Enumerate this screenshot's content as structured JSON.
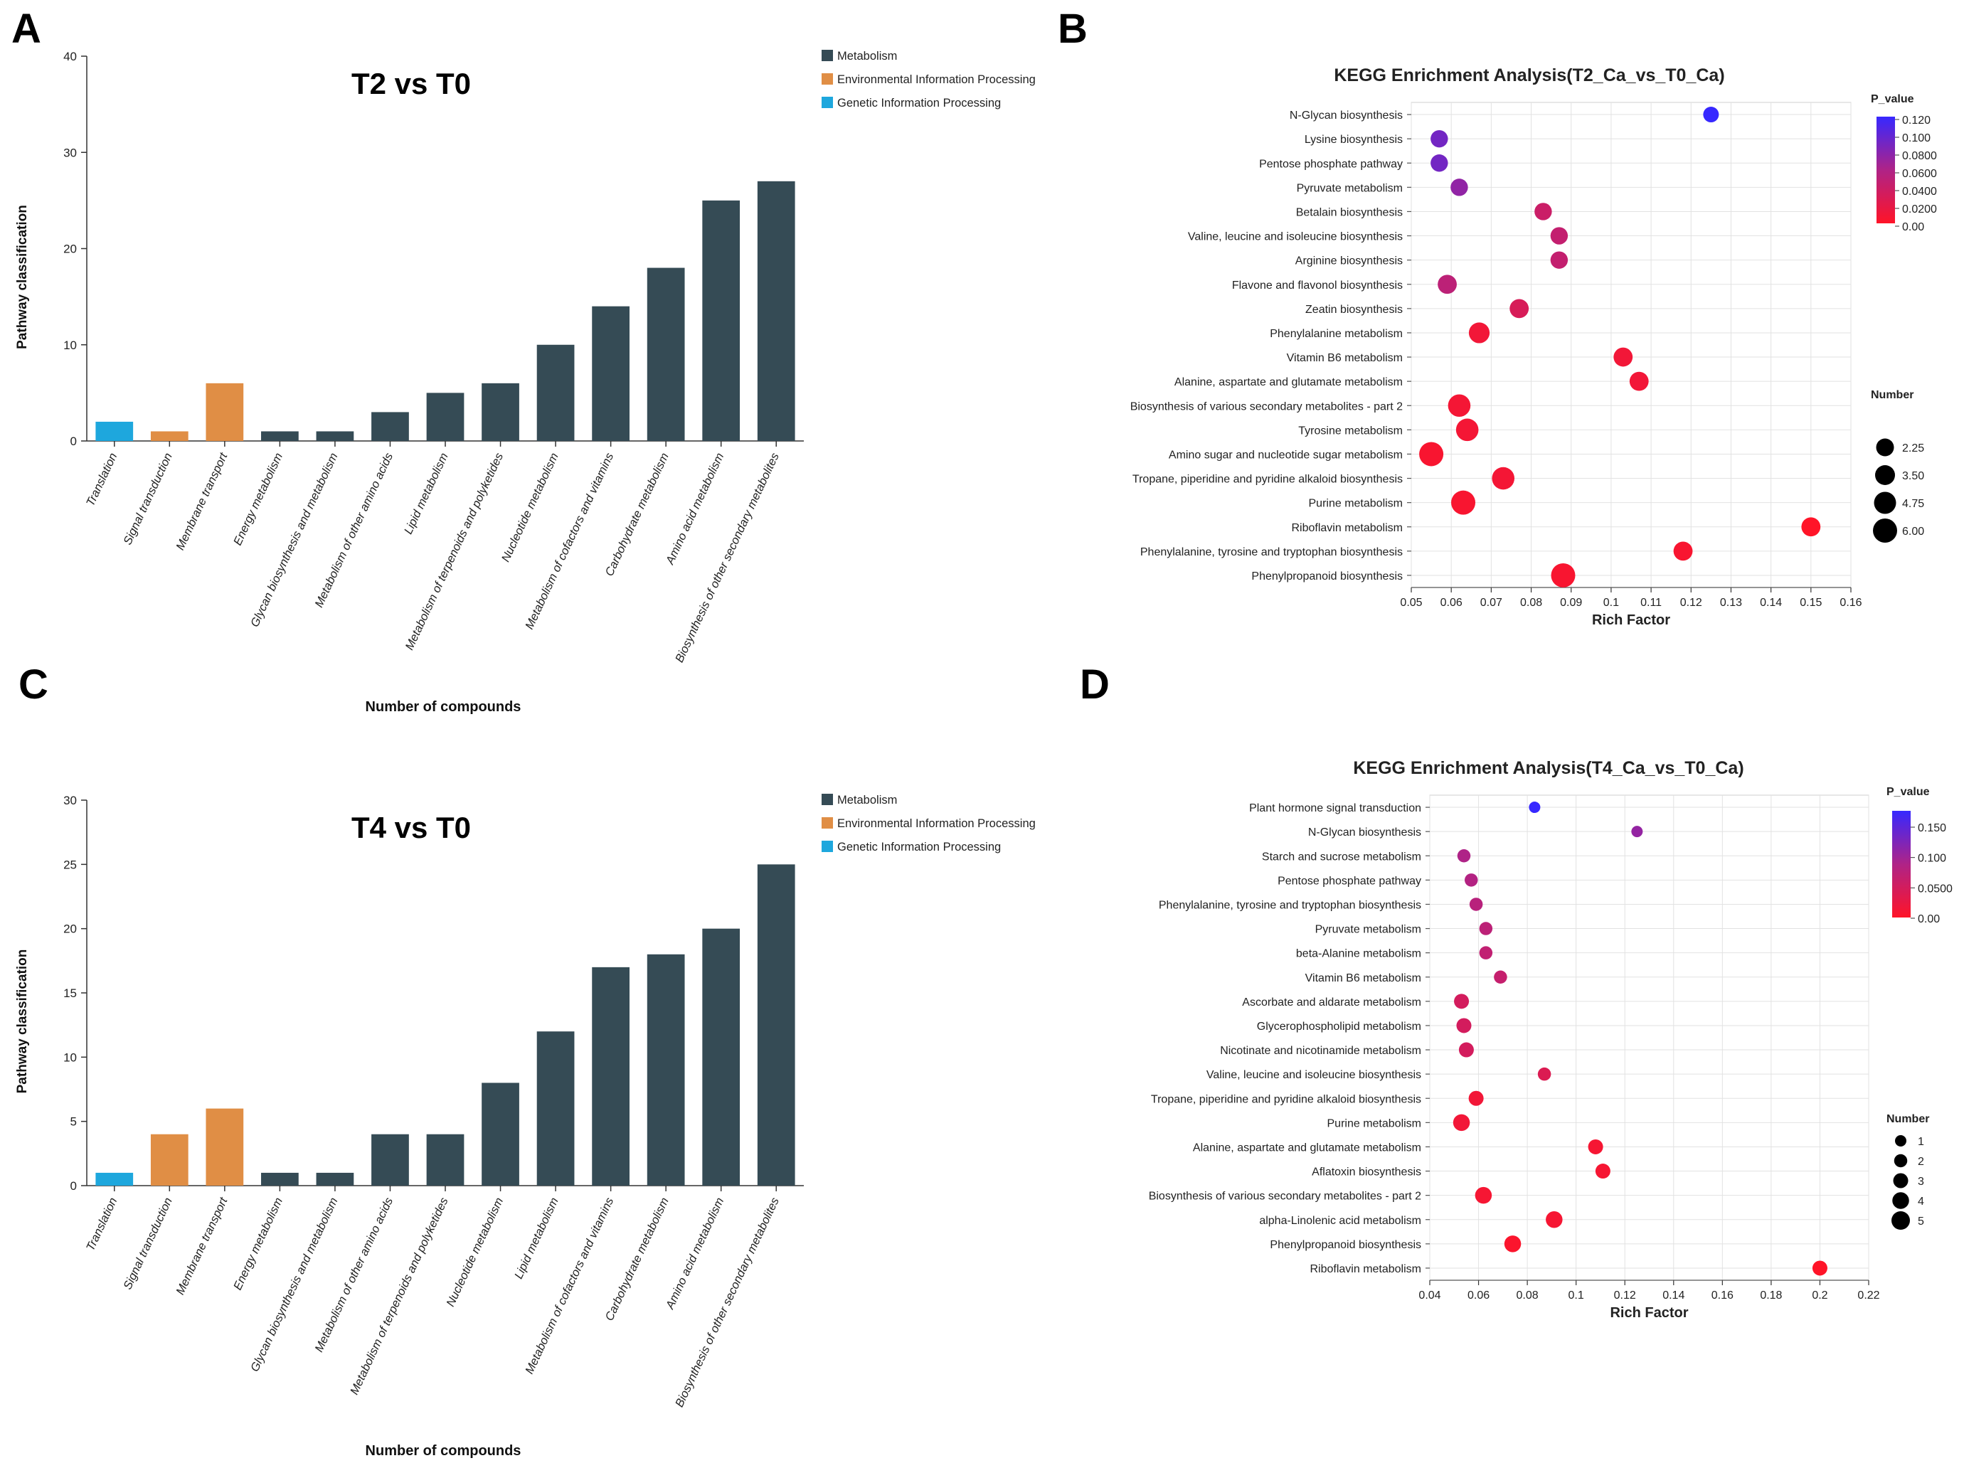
{
  "panels": {
    "A": {
      "label": "A"
    },
    "B": {
      "label": "B"
    },
    "C": {
      "label": "C"
    },
    "D": {
      "label": "D"
    }
  },
  "chart_data": [
    {
      "id": "A",
      "type": "bar",
      "title": "T2 vs T0",
      "xlabel": "Number of compounds",
      "ylabel": "Pathway classification",
      "ylim": [
        0,
        40
      ],
      "yticks": [
        0,
        10,
        20,
        30,
        40
      ],
      "legend": [
        {
          "name": "Metabolism",
          "color": "#354b55"
        },
        {
          "name": "Environmental Information Processing",
          "color": "#e08e45"
        },
        {
          "name": "Genetic Information Processing",
          "color": "#1ea7dd"
        }
      ],
      "categories": [
        "Translation",
        "Signal transduction",
        "Membrane transport",
        "Energy metabolism",
        "Glycan biosynthesis and metabolism",
        "Metabolism of other amino acids",
        "Lipid metabolism",
        "Metabolism of terpenoids and polyketides",
        "Nucleotide metabolism",
        "Metabolism of cofactors and vitamins",
        "Carbohydrate metabolism",
        "Amino acid metabolism",
        "Biosynthesis of other secondary metabolites"
      ],
      "values": [
        2,
        1,
        6,
        1,
        1,
        3,
        5,
        6,
        10,
        14,
        18,
        25,
        27
      ],
      "groups": [
        2,
        1,
        1,
        0,
        0,
        0,
        0,
        0,
        0,
        0,
        0,
        0,
        0
      ]
    },
    {
      "id": "B",
      "type": "scatter",
      "title": "KEGG Enrichment Analysis(T2_Ca_vs_T0_Ca)",
      "xlabel": "Rich Factor",
      "xlim": [
        0.05,
        0.16
      ],
      "xticks": [
        "0.05",
        "0.06",
        "0.07",
        "0.08",
        "0.09",
        "0.1",
        "0.11",
        "0.12",
        "0.13",
        "0.14",
        "0.15",
        "0.16"
      ],
      "color_legend": {
        "title": "P_value",
        "labels": [
          "0.120",
          "0.100",
          "0.0800",
          "0.0600",
          "0.0400",
          "0.0200",
          "0.00"
        ]
      },
      "size_legend": {
        "title": "Number",
        "labels": [
          "2.25",
          "3.50",
          "4.75",
          "6.00"
        ]
      },
      "pathways": [
        "N-Glycan biosynthesis",
        "Lysine biosynthesis",
        "Pentose phosphate pathway",
        "Pyruvate metabolism",
        "Betalain biosynthesis",
        "Valine, leucine and isoleucine biosynthesis",
        "Arginine biosynthesis",
        "Flavone and flavonol biosynthesis",
        "Zeatin biosynthesis",
        "Phenylalanine metabolism",
        "Vitamin B6 metabolism",
        "Alanine, aspartate and glutamate metabolism",
        "Biosynthesis of various secondary metabolites - part 2",
        "Tyrosine metabolism",
        "Amino sugar and nucleotide sugar metabolism",
        "Tropane, piperidine and pyridine alkaloid biosynthesis",
        "Purine metabolism",
        "Riboflavin metabolism",
        "Phenylalanine, tyrosine and tryptophan biosynthesis",
        "Phenylpropanoid biosynthesis"
      ],
      "rich_factor": [
        0.125,
        0.057,
        0.057,
        0.062,
        0.083,
        0.087,
        0.087,
        0.059,
        0.077,
        0.067,
        0.103,
        0.107,
        0.062,
        0.064,
        0.055,
        0.073,
        0.063,
        0.15,
        0.118,
        0.088
      ],
      "p_value": [
        0.12,
        0.09,
        0.09,
        0.075,
        0.04,
        0.045,
        0.045,
        0.05,
        0.03,
        0.01,
        0.01,
        0.01,
        0.008,
        0.008,
        0.005,
        0.008,
        0.005,
        0.0,
        0.005,
        0.005
      ],
      "number": [
        1,
        2,
        2,
        2,
        2,
        2,
        2,
        3,
        3,
        4,
        3,
        3,
        5,
        5,
        6,
        5,
        6,
        3,
        3,
        6
      ]
    },
    {
      "id": "C",
      "type": "bar",
      "title": "T4 vs T0",
      "xlabel": "Number of compounds",
      "ylabel": "Pathway classification",
      "ylim": [
        0,
        30
      ],
      "yticks": [
        0,
        5,
        10,
        15,
        20,
        25,
        30
      ],
      "legend": [
        {
          "name": "Metabolism",
          "color": "#354b55"
        },
        {
          "name": "Environmental Information Processing",
          "color": "#e08e45"
        },
        {
          "name": "Genetic Information Processing",
          "color": "#1ea7dd"
        }
      ],
      "categories": [
        "Translation",
        "Signal transduction",
        "Membrane transport",
        "Energy metabolism",
        "Glycan biosynthesis and metabolism",
        "Metabolism of other amino acids",
        "Metabolism of terpenoids and polyketides",
        "Nucleotide metabolism",
        "Lipid metabolism",
        "Metabolism of cofactors and vitamins",
        "Carbohydrate metabolism",
        "Amino acid metabolism",
        "Biosynthesis of other secondary metabolites"
      ],
      "values": [
        1,
        4,
        6,
        1,
        1,
        4,
        4,
        8,
        12,
        17,
        18,
        20,
        25
      ],
      "groups": [
        2,
        1,
        1,
        0,
        0,
        0,
        0,
        0,
        0,
        0,
        0,
        0,
        0
      ]
    },
    {
      "id": "D",
      "type": "scatter",
      "title": "KEGG Enrichment Analysis(T4_Ca_vs_T0_Ca)",
      "xlabel": "Rich Factor",
      "xlim": [
        0.04,
        0.22
      ],
      "xticks": [
        "0.04",
        "0.06",
        "0.08",
        "0.1",
        "0.12",
        "0.14",
        "0.16",
        "0.18",
        "0.2",
        "0.22"
      ],
      "color_legend": {
        "title": "P_value",
        "labels": [
          "0.150",
          "0.100",
          "0.0500",
          "0.00"
        ]
      },
      "size_legend": {
        "title": "Number",
        "labels": [
          "1",
          "2",
          "3",
          "4",
          "5"
        ]
      },
      "pathways": [
        "Plant hormone signal transduction",
        "N-Glycan biosynthesis",
        "Starch and sucrose metabolism",
        "Pentose phosphate pathway",
        "Phenylalanine, tyrosine and tryptophan biosynthesis",
        "Pyruvate metabolism",
        "beta-Alanine metabolism",
        "Vitamin B6 metabolism",
        "Ascorbate and aldarate metabolism",
        "Glycerophospholipid metabolism",
        "Nicotinate and nicotinamide metabolism",
        "Valine, leucine and isoleucine biosynthesis",
        "Tropane, piperidine and pyridine alkaloid biosynthesis",
        "Purine metabolism",
        "Alanine, aspartate and glutamate metabolism",
        "Aflatoxin biosynthesis",
        "Biosynthesis of various secondary metabolites - part 2",
        "alpha-Linolenic acid metabolism",
        "Phenylpropanoid biosynthesis",
        "Riboflavin metabolism"
      ],
      "rich_factor": [
        0.083,
        0.125,
        0.054,
        0.057,
        0.059,
        0.063,
        0.063,
        0.069,
        0.053,
        0.054,
        0.055,
        0.087,
        0.059,
        0.053,
        0.108,
        0.111,
        0.062,
        0.091,
        0.074,
        0.2
      ],
      "p_value": [
        0.18,
        0.11,
        0.09,
        0.085,
        0.08,
        0.075,
        0.07,
        0.065,
        0.05,
        0.05,
        0.05,
        0.04,
        0.015,
        0.015,
        0.01,
        0.01,
        0.01,
        0.01,
        0.005,
        0.0
      ],
      "number": [
        1,
        1,
        2,
        2,
        2,
        2,
        2,
        2,
        3,
        3,
        3,
        2,
        3,
        4,
        3,
        3,
        4,
        4,
        4,
        3
      ]
    }
  ]
}
